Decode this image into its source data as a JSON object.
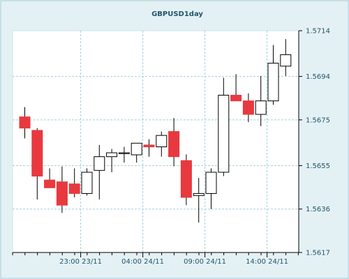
{
  "chart_data": {
    "type": "candlestick",
    "title": "GBPUSD1day",
    "x_tick_labels": [
      "23:00 23/11",
      "04:00 24/11",
      "09:00 24/11",
      "14:00 24/11"
    ],
    "x_tick_candle_index": [
      4.5,
      9.5,
      14.5,
      19.5
    ],
    "y_tick_labels": [
      "1.5617",
      "1.5636",
      "1.5655",
      "1.5675",
      "1.5694",
      "1.5714"
    ],
    "ylim": [
      1.5617,
      1.5714
    ],
    "grid": true,
    "colors": {
      "bearish_fill": "#e8393f",
      "bullish_fill": "#ffffff",
      "outline": "#000000",
      "grid": "#9fd2da",
      "background_outer": "#e4f1f4",
      "background_plot": "#ffffff"
    },
    "candles": [
      {
        "open": 1.56763,
        "high": 1.56806,
        "low": 1.56669,
        "close": 1.56714
      },
      {
        "open": 1.56704,
        "high": 1.56714,
        "low": 1.56402,
        "close": 1.56504
      },
      {
        "open": 1.56487,
        "high": 1.56538,
        "low": 1.56453,
        "close": 1.56453
      },
      {
        "open": 1.56479,
        "high": 1.56546,
        "low": 1.56343,
        "close": 1.56377
      },
      {
        "open": 1.5647,
        "high": 1.56538,
        "low": 1.56411,
        "close": 1.56428
      },
      {
        "open": 1.56428,
        "high": 1.56538,
        "low": 1.56419,
        "close": 1.56521
      },
      {
        "open": 1.56529,
        "high": 1.5664,
        "low": 1.56402,
        "close": 1.56589
      },
      {
        "open": 1.56589,
        "high": 1.56623,
        "low": 1.56521,
        "close": 1.56606
      },
      {
        "open": 1.56606,
        "high": 1.56632,
        "low": 1.56563,
        "close": 1.56606
      },
      {
        "open": 1.56597,
        "high": 1.56648,
        "low": 1.56563,
        "close": 1.56648
      },
      {
        "open": 1.5664,
        "high": 1.56665,
        "low": 1.56589,
        "close": 1.56632
      },
      {
        "open": 1.56632,
        "high": 1.56699,
        "low": 1.56589,
        "close": 1.56682
      },
      {
        "open": 1.56699,
        "high": 1.56758,
        "low": 1.56547,
        "close": 1.56589
      },
      {
        "open": 1.56572,
        "high": 1.56599,
        "low": 1.56377,
        "close": 1.56411
      },
      {
        "open": 1.56419,
        "high": 1.56496,
        "low": 1.56301,
        "close": 1.56428
      },
      {
        "open": 1.56428,
        "high": 1.56538,
        "low": 1.5636,
        "close": 1.56521
      },
      {
        "open": 1.56521,
        "high": 1.56934,
        "low": 1.56504,
        "close": 1.56858
      },
      {
        "open": 1.56858,
        "high": 1.5695,
        "low": 1.56833,
        "close": 1.56833
      },
      {
        "open": 1.56833,
        "high": 1.56866,
        "low": 1.5674,
        "close": 1.56774
      },
      {
        "open": 1.56774,
        "high": 1.56942,
        "low": 1.56723,
        "close": 1.56833
      },
      {
        "open": 1.56833,
        "high": 1.57077,
        "low": 1.56816,
        "close": 1.56998
      },
      {
        "open": 1.56985,
        "high": 1.57103,
        "low": 1.56942,
        "close": 1.57035
      }
    ]
  }
}
